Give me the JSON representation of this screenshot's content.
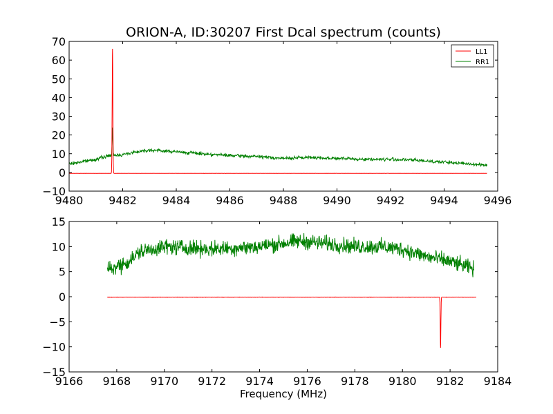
{
  "chart_data": [
    {
      "type": "line",
      "title": "ORION-A, ID:30207 First Dcal spectrum (counts)",
      "xlabel": "",
      "ylabel": "",
      "xlim": [
        9480,
        9496
      ],
      "ylim": [
        -10,
        70
      ],
      "xticks": [
        9480,
        9482,
        9484,
        9486,
        9488,
        9490,
        9492,
        9494,
        9496
      ],
      "yticks": [
        -10,
        0,
        10,
        20,
        30,
        40,
        50,
        60,
        70
      ],
      "grid": false,
      "legend": {
        "placement": "top-right",
        "entries": [
          "LL1",
          "RR1"
        ]
      },
      "series": [
        {
          "name": "LL1",
          "color": "#ff0000",
          "x_range": [
            9480.0,
            9495.6
          ],
          "baseline": -0.5,
          "peak": {
            "x": 9481.62,
            "y": 66
          }
        },
        {
          "name": "RR1",
          "color": "#008000",
          "x": [
            9480.0,
            9481.0,
            9481.5,
            9482.0,
            9482.5,
            9483.0,
            9484.0,
            9485.0,
            9486.0,
            9487.0,
            9488.0,
            9489.0,
            9490.0,
            9491.0,
            9492.0,
            9493.0,
            9494.0,
            9495.0,
            9495.6
          ],
          "y": [
            4.5,
            7,
            9,
            9.5,
            11,
            12,
            11,
            10,
            9,
            8.5,
            7.5,
            8,
            7.5,
            7,
            7,
            6.5,
            5.5,
            4.5,
            4
          ],
          "peak": {
            "x": 9481.62,
            "y": 24
          }
        }
      ]
    },
    {
      "type": "line",
      "title": "",
      "xlabel": "Frequency (MHz)",
      "ylabel": "",
      "xlim": [
        9166,
        9184
      ],
      "ylim": [
        -15,
        15
      ],
      "xticks": [
        9166,
        9168,
        9170,
        9172,
        9174,
        9176,
        9178,
        9180,
        9182,
        9184
      ],
      "yticks": [
        -15,
        -10,
        -5,
        0,
        5,
        10,
        15
      ],
      "grid": false,
      "series": [
        {
          "name": "",
          "color": "#ff0000",
          "x_range": [
            9167.6,
            9183.1
          ],
          "baseline": -0.1,
          "dip": {
            "x": 9181.6,
            "y": -10.2
          }
        },
        {
          "name": "",
          "color": "#008000",
          "x": [
            9167.6,
            9168.0,
            9168.5,
            9169.0,
            9170.0,
            9172.0,
            9174.0,
            9175.5,
            9176.0,
            9178.0,
            9179.0,
            9180.0,
            9181.0,
            9182.0,
            9183.0
          ],
          "y": [
            5.5,
            6,
            7,
            9,
            10,
            9.5,
            10,
            11,
            11,
            10,
            10,
            9.5,
            8,
            7,
            5.5
          ]
        }
      ]
    }
  ]
}
